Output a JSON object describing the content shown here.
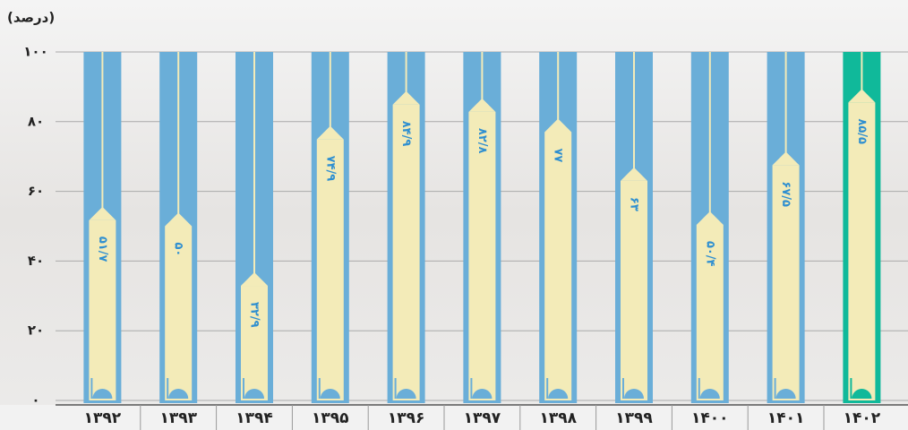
{
  "chart_data": {
    "type": "bar",
    "y_label": "(درصد)",
    "categories": [
      "۱۳۹۲",
      "۱۳۹۳",
      "۱۳۹۴",
      "۱۳۹۵",
      "۱۳۹۶",
      "۱۳۹۷",
      "۱۳۹۸",
      "۱۳۹۹",
      "۱۴۰۰",
      "۱۴۰۱",
      "۱۴۰۲"
    ],
    "values": [
      51.7,
      50,
      32.9,
      74.9,
      84.9,
      82.8,
      77,
      63,
      50.4,
      67.5,
      85.5
    ],
    "value_labels": [
      "۵۱/۷",
      "۵۰",
      "۳۲/۹",
      "۷۴/۹",
      "۸۴/۹",
      "۸۲/۸",
      "۷۷",
      "۶۳",
      "۵۰/۴",
      "۶۷/۵",
      "۸۵/۵"
    ],
    "color": "#f3ebb8",
    "track_colors": [
      "#6aaed8",
      "#6aaed8",
      "#6aaed8",
      "#6aaed8",
      "#6aaed8",
      "#6aaed8",
      "#6aaed8",
      "#6aaed8",
      "#6aaed8",
      "#6aaed8",
      "#10b99a"
    ],
    "ylim": [
      0,
      100
    ],
    "yticks": [
      {
        "value": 0,
        "label": "۰"
      },
      {
        "value": 20,
        "label": "۲۰"
      },
      {
        "value": 40,
        "label": "۴۰"
      },
      {
        "value": 60,
        "label": "۶۰"
      },
      {
        "value": 80,
        "label": "۸۰"
      },
      {
        "value": 100,
        "label": "۱۰۰"
      }
    ],
    "grid": true
  }
}
